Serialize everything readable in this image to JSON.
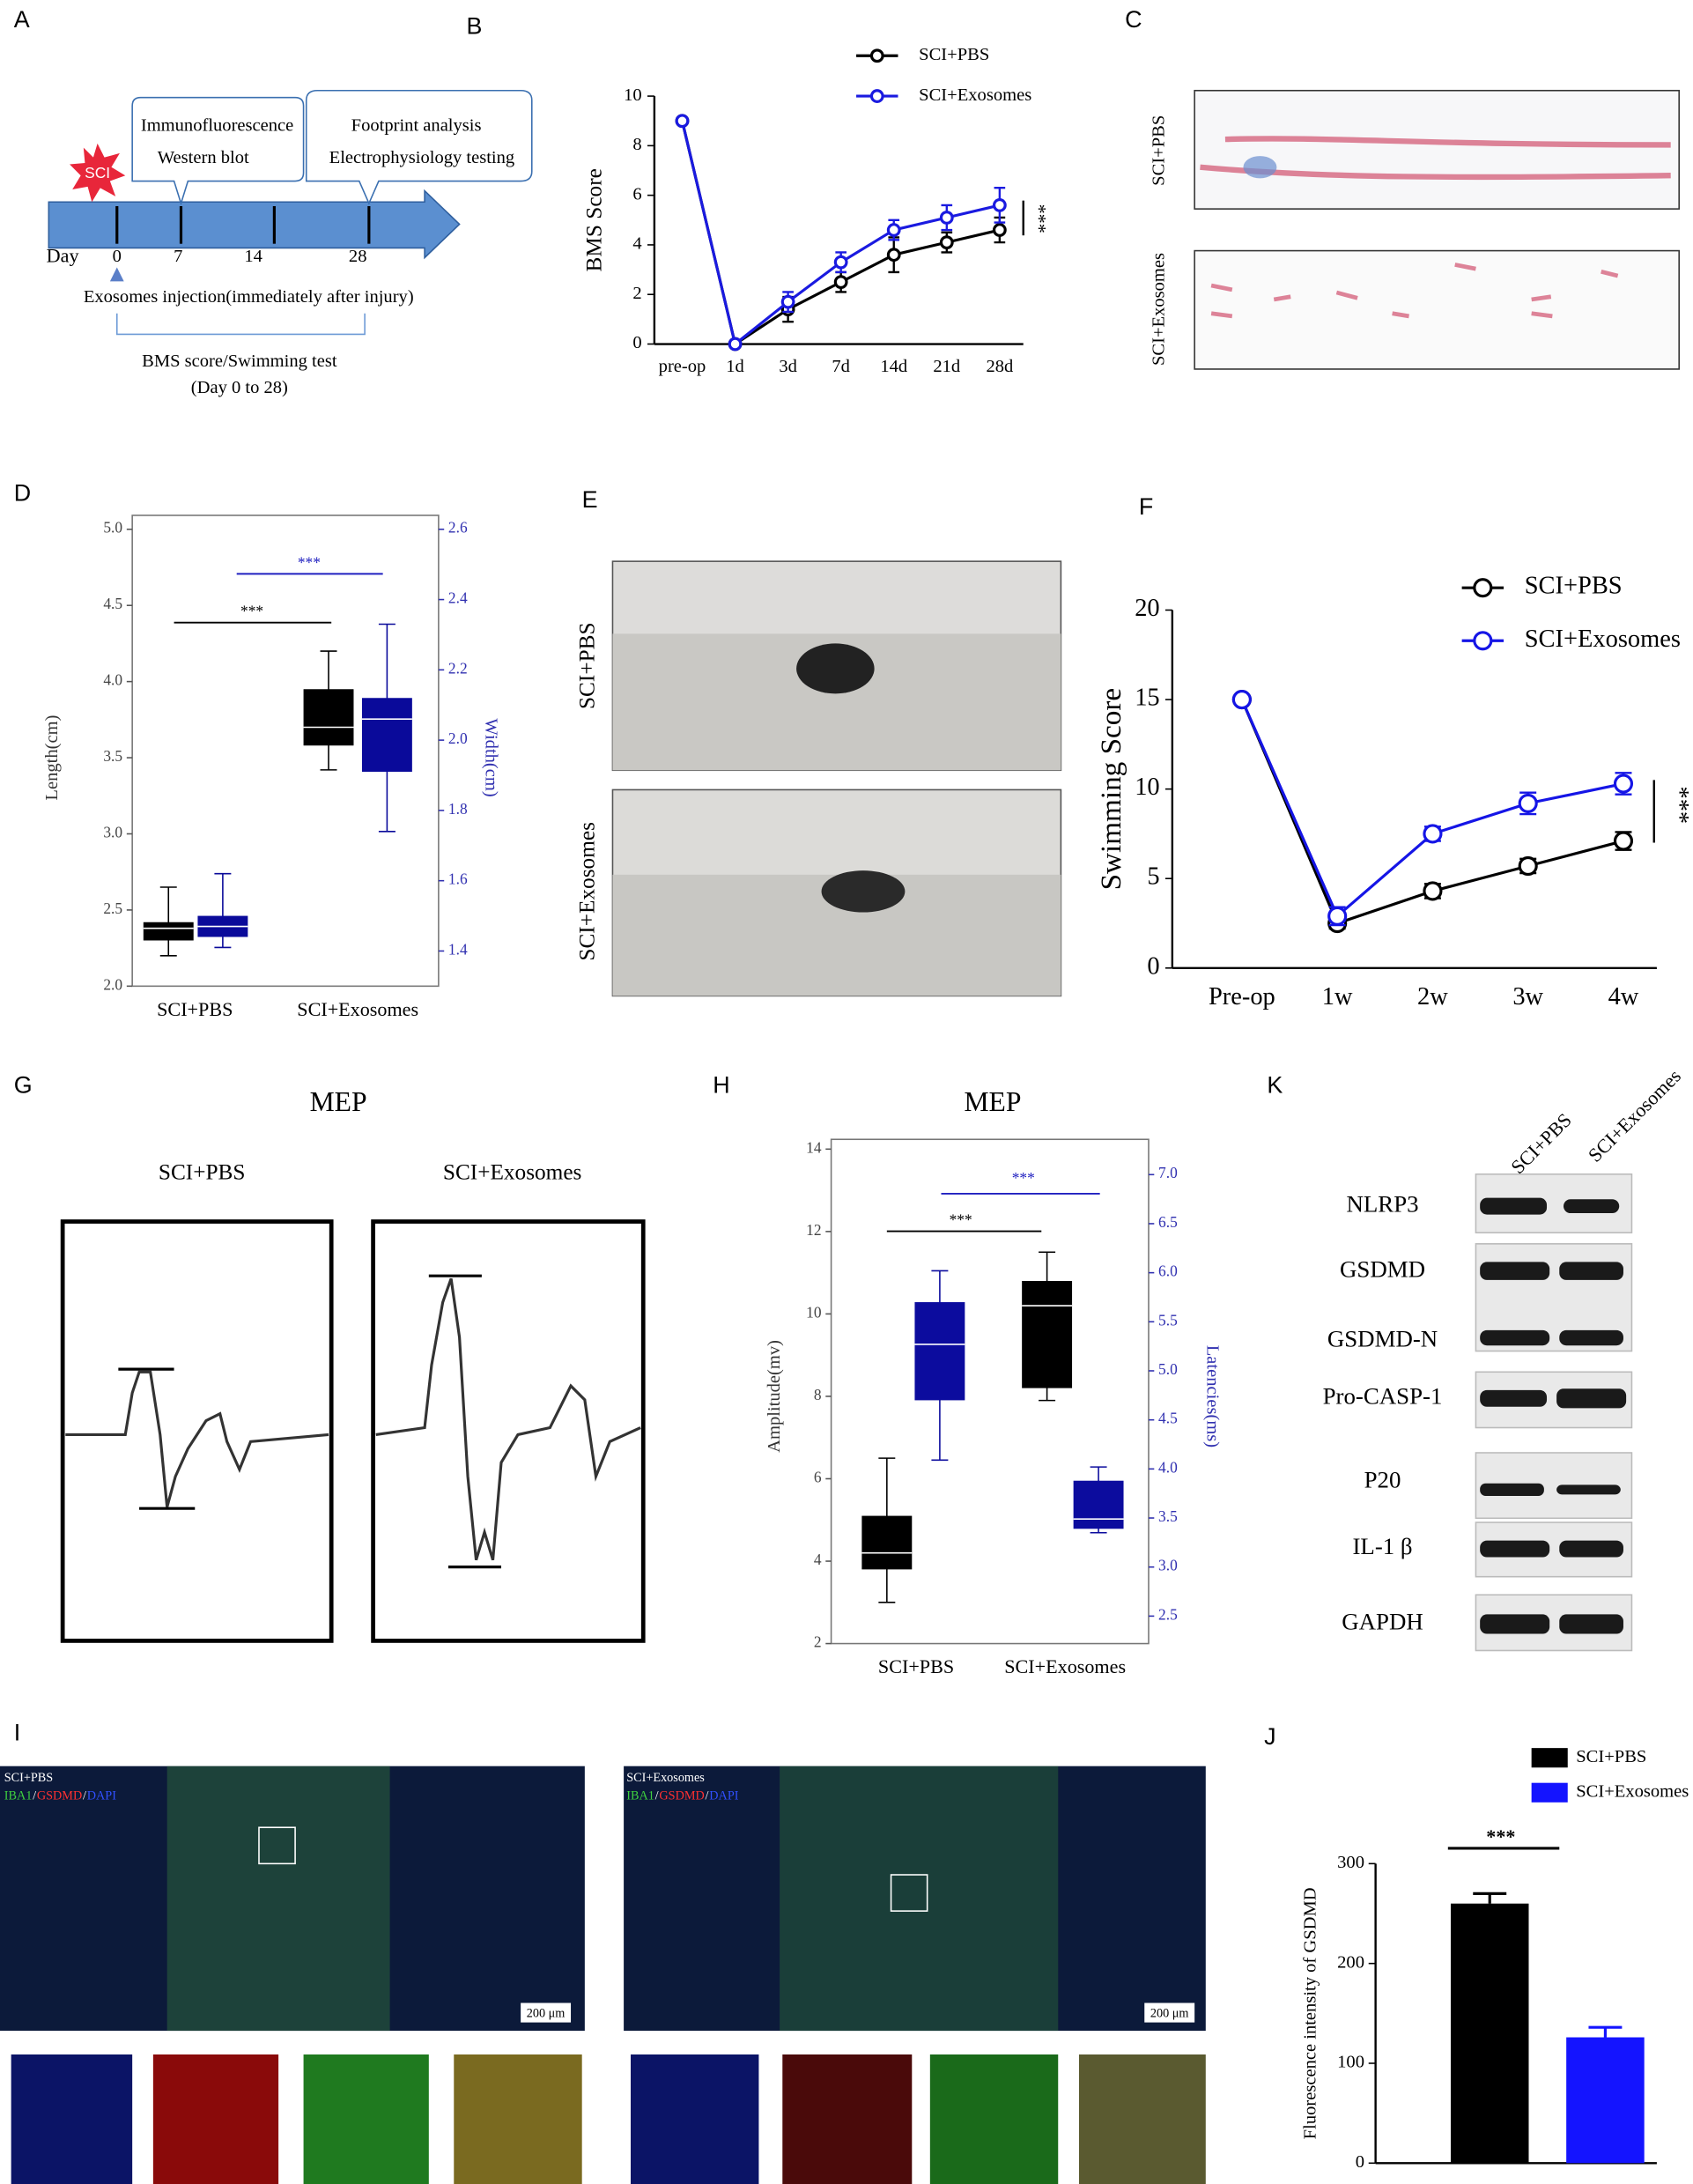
{
  "figure": {
    "panel_letters": [
      "A",
      "B",
      "C",
      "D",
      "E",
      "F",
      "G",
      "H",
      "I",
      "J",
      "K"
    ],
    "A": {
      "sci": "SCI",
      "boxes": [
        "Immunofluorescence",
        "Western blot",
        "Footprint analysis",
        "Electrophysiology testing"
      ],
      "day": "Day",
      "days": [
        "0",
        "7",
        "14",
        "28"
      ],
      "injection": "Exosomes injection(immediately after injury)",
      "test": "BMS score/Swimming test",
      "range": "(Day 0 to 28)"
    },
    "C": {
      "rows": [
        "SCI+PBS",
        "SCI+Exosomes"
      ]
    },
    "E": {
      "rows": [
        "SCI+PBS",
        "SCI+Exosomes"
      ]
    },
    "G": {
      "title": "MEP",
      "columns": [
        "SCI+PBS",
        "SCI+Exosomes"
      ]
    },
    "I": {
      "panels": [
        {
          "label": "SCI+PBS",
          "stain": [
            "IBA1",
            "/",
            "GSDMD",
            "/",
            "DAPI"
          ],
          "scale": "200 μm"
        },
        {
          "label": "SCI+Exosomes",
          "stain": [
            "IBA1",
            "/",
            "GSDMD",
            "/",
            "DAPI"
          ],
          "scale": "200 μm"
        }
      ]
    },
    "K": {
      "columns": [
        "SCI+PBS",
        "SCI+Exosomes"
      ],
      "rows": [
        "NLRP3",
        "GSDMD",
        "GSDMD-N",
        "Pro-CASP-1",
        "P20",
        "IL-1 β",
        "GAPDH"
      ]
    }
  },
  "chart_data": [
    {
      "type": "line",
      "ylabel": "BMS Score",
      "categories": [
        "pre-op",
        "1d",
        "3d",
        "7d",
        "14d",
        "21d",
        "28d"
      ],
      "series": [
        {
          "name": "SCI+PBS",
          "color": "#000000",
          "values": [
            9,
            0,
            1.4,
            2.5,
            3.6,
            4.1,
            4.6
          ],
          "errors": [
            0,
            0,
            0.5,
            0.4,
            0.7,
            0.4,
            0.5
          ]
        },
        {
          "name": "SCI+Exosomes",
          "color": "#1a1ae0",
          "values": [
            9,
            0,
            1.7,
            3.3,
            4.6,
            5.1,
            5.6
          ],
          "errors": [
            0,
            0,
            0.4,
            0.4,
            0.4,
            0.5,
            0.7
          ]
        }
      ],
      "ylim": [
        0,
        10
      ],
      "yticks": [
        0,
        2,
        4,
        6,
        8,
        10
      ],
      "annotation": "***"
    },
    {
      "type": "box",
      "ylabel": "Length(cm)",
      "y2label": "Width(cm)",
      "categories": [
        "SCI+PBS",
        "SCI+Exosomes"
      ],
      "ylim": [
        2.0,
        5.0
      ],
      "yticks": [
        {
          "value": 2,
          "label": "2.0"
        },
        2.5,
        {
          "value": 3,
          "label": "3.0"
        },
        3.5,
        {
          "value": 4,
          "label": "4.0"
        },
        4.5,
        {
          "value": 5,
          "label": "5.0"
        }
      ],
      "y2lim": [
        1.3,
        2.6
      ],
      "y2ticks": [
        1.4,
        1.6,
        1.8,
        {
          "value": 2,
          "label": "2.0"
        },
        2.2,
        2.4,
        2.6
      ],
      "series": [
        {
          "axis": "y",
          "color": "#000000",
          "boxes": [
            {
              "min": 2.2,
              "q1": 2.3,
              "median": 2.38,
              "q3": 2.42,
              "max": 2.65
            },
            {
              "min": 3.42,
              "q1": 3.58,
              "median": 3.7,
              "q3": 3.95,
              "max": 4.2
            }
          ]
        },
        {
          "axis": "y2",
          "color": "#0a0a9a",
          "boxes": [
            {
              "min": 1.41,
              "q1": 1.44,
              "median": 1.47,
              "q3": 1.5,
              "max": 1.62
            },
            {
              "min": 1.74,
              "q1": 1.91,
              "median": 2.06,
              "q3": 2.12,
              "max": 2.33
            }
          ]
        }
      ],
      "annotations": [
        {
          "text": "***",
          "color": "#000000"
        },
        {
          "text": "***",
          "color": "#2020c0"
        }
      ]
    },
    {
      "type": "line",
      "ylabel": "Swimming Score",
      "categories": [
        "Pre-op",
        "1w",
        "2w",
        "3w",
        "4w"
      ],
      "series": [
        {
          "name": "SCI+PBS",
          "color": "#000000",
          "values": [
            15,
            2.5,
            4.3,
            5.7,
            7.1
          ],
          "errors": [
            0,
            0.3,
            0.4,
            0.4,
            0.5
          ]
        },
        {
          "name": "SCI+Exosomes",
          "color": "#1515e6",
          "values": [
            15,
            2.9,
            7.5,
            9.2,
            10.3
          ],
          "errors": [
            0,
            0.5,
            0.4,
            0.6,
            0.6
          ]
        }
      ],
      "ylim": [
        0,
        20
      ],
      "yticks": [
        0,
        5,
        10,
        15,
        20
      ],
      "annotation": "***"
    },
    {
      "type": "box",
      "title": "MEP",
      "ylabel": "Amplitude(mv)",
      "y2label": "Latencies(ms)",
      "categories": [
        "SCI+PBS",
        "SCI+Exosomes"
      ],
      "ylim": [
        2,
        14
      ],
      "yticks": [
        2,
        4,
        6,
        8,
        10,
        12,
        14
      ],
      "y2lim": [
        2.22,
        7.26
      ],
      "y2ticks": [
        2.5,
        {
          "value": 3,
          "label": "3.0"
        },
        3.5,
        {
          "value": 4,
          "label": "4.0"
        },
        4.5,
        {
          "value": 5,
          "label": "5.0"
        },
        5.5,
        {
          "value": 6,
          "label": "6.0"
        },
        6.5,
        {
          "value": 7,
          "label": "7.0"
        }
      ],
      "series": [
        {
          "axis": "y",
          "color": "#000000",
          "boxes": [
            {
              "min": 3.0,
              "q1": 3.8,
              "median": 4.2,
              "q3": 5.1,
              "max": 6.5
            },
            {
              "min": 7.9,
              "q1": 8.2,
              "median": 10.2,
              "q3": 10.8,
              "max": 11.5
            }
          ]
        },
        {
          "axis": "y2",
          "color": "#0c0c9e",
          "boxes": [
            {
              "min": 4.09,
              "q1": 4.7,
              "median": 5.27,
              "q3": 5.7,
              "max": 6.02
            },
            {
              "min": 3.35,
              "q1": 3.39,
              "median": 3.49,
              "q3": 3.88,
              "max": 4.02
            }
          ]
        }
      ],
      "annotations": [
        {
          "text": "***",
          "color": "#000000"
        },
        {
          "text": "***",
          "color": "#2020c0"
        }
      ]
    },
    {
      "type": "bar",
      "ylabel": "Fluorescence intensity of GSDMD",
      "series": [
        {
          "name": "SCI+PBS",
          "color": "#000000",
          "values": [
            260
          ],
          "errors": [
            10
          ]
        },
        {
          "name": "SCI+Exosomes",
          "color": "#1414ff",
          "values": [
            126
          ],
          "errors": [
            10
          ]
        }
      ],
      "ylim": [
        0,
        300
      ],
      "yticks": [
        0,
        100,
        200,
        300
      ],
      "annotation": "***"
    }
  ]
}
